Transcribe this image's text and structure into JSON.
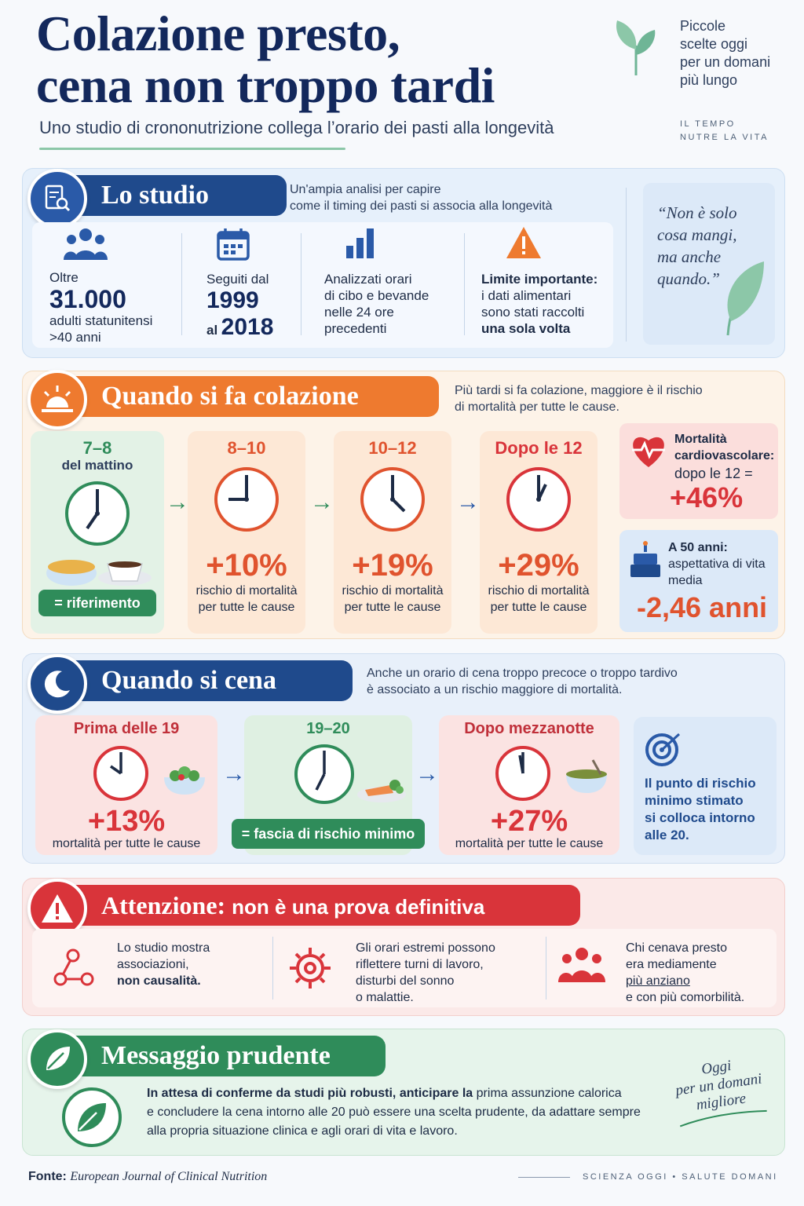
{
  "header": {
    "title_line1": "Colazione presto,",
    "title_line2": "cena non troppo tardi",
    "subtitle": "Uno studio di crononutrizione collega l’orario dei pasti alla longevità",
    "tagline": [
      "Piccole",
      "scelte oggi",
      "per un domani",
      "più lungo"
    ],
    "motto": [
      "IL TEMPO",
      "NUTRE LA VITA"
    ]
  },
  "study": {
    "heading": "Lo studio",
    "intro": [
      "Un'ampia analisi per capire",
      "come il timing dei pasti si associa alla longevità"
    ],
    "stats": [
      {
        "pre": "Oltre",
        "big": "31.000",
        "post1": "adulti statunitensi",
        "post2": ">40 anni"
      },
      {
        "pre": "Seguiti dal",
        "big1": "1999",
        "mid": "al",
        "big2": "2018"
      },
      {
        "l1": "Analizzati orari",
        "l2": "di cibo e bevande",
        "l3": "nelle 24 ore",
        "l4": "precedenti"
      },
      {
        "l1": "Limite importante:",
        "l2": "i dati alimentari",
        "l3": "sono stati raccolti",
        "l4": "una sola volta"
      }
    ],
    "quote": [
      "“Non è solo",
      "cosa mangi,",
      "ma anche",
      "quando.”"
    ]
  },
  "breakfast": {
    "heading": "Quando si fa colazione",
    "intro": [
      "Più tardi si fa colazione, maggiore è il rischio",
      "di mortalità per tutte le cause."
    ],
    "times": [
      {
        "label1": "7–8",
        "label2": "del mattino",
        "badge": "= riferimento"
      },
      {
        "label1": "8–10",
        "pct": "+10%",
        "desc1": "rischio di mortalità",
        "desc2": "per tutte le cause"
      },
      {
        "label1": "10–12",
        "pct": "+19%",
        "desc1": "rischio di mortalità",
        "desc2": "per tutte le cause"
      },
      {
        "label1": "Dopo le 12",
        "pct": "+29%",
        "desc1": "rischio di mortalità",
        "desc2": "per tutte le cause"
      }
    ],
    "cardio": {
      "l1": "Mortalità",
      "l2": "cardiovascolare:",
      "l3": "dopo le 12 =",
      "val": "+46%"
    },
    "life": {
      "l1": "A 50 anni:",
      "l2": "aspettativa di vita",
      "l3": "media",
      "val": "-2,46 anni"
    }
  },
  "dinner": {
    "heading": "Quando si cena",
    "intro": [
      "Anche un orario di cena troppo precoce o troppo tardivo",
      "è associato a un rischio maggiore di mortalità."
    ],
    "times": [
      {
        "label": "Prima delle 19",
        "pct": "+13%",
        "desc": "mortalità per tutte le cause"
      },
      {
        "label": "19–20",
        "badge": "= fascia di rischio minimo"
      },
      {
        "label": "Dopo mezzanotte",
        "pct": "+27%",
        "desc": "mortalità per tutte le cause"
      }
    ],
    "note": [
      "Il punto di rischio",
      "minimo stimato",
      "si colloca intorno",
      "alle 20."
    ]
  },
  "warning": {
    "heading_bold": "Attenzione:",
    "heading_rest": "non è una prova definitiva",
    "items": [
      {
        "l1": "Lo studio mostra",
        "l2": "associazioni,",
        "l3": "non causalità."
      },
      {
        "l1": "Gli orari estremi possono",
        "l2": "riflettere turni di lavoro,",
        "l3": "disturbi del sonno",
        "l4": "o malattie."
      },
      {
        "l1": "Chi cenava presto",
        "l2": "era mediamente",
        "l3": "più anziano",
        "l4": "e con più comorbilità."
      }
    ]
  },
  "message": {
    "heading": "Messaggio prudente",
    "text_a": "In attesa di conferme da studi più robusti,",
    "text_b": "anticipare la",
    "text_c": "prima assunzione calorica",
    "text_line2": "e concludere la cena intorno alle 20 può essere una scelta prudente, da adattare sempre",
    "text_line3": "alla propria situazione clinica e agli orari di vita e lavoro.",
    "signature": [
      "Oggi",
      "per un domani",
      "migliore"
    ]
  },
  "footer": {
    "source_label": "Fonte:",
    "source": "European Journal of Clinical Nutrition",
    "brand": "SCIENZA OGGI • SALUTE DOMANI"
  },
  "colors": {
    "navy": "#13285c",
    "orange": "#ee7a2f",
    "red": "#d9343a",
    "green": "#2f8c5a",
    "blue": "#2a5aa8"
  }
}
